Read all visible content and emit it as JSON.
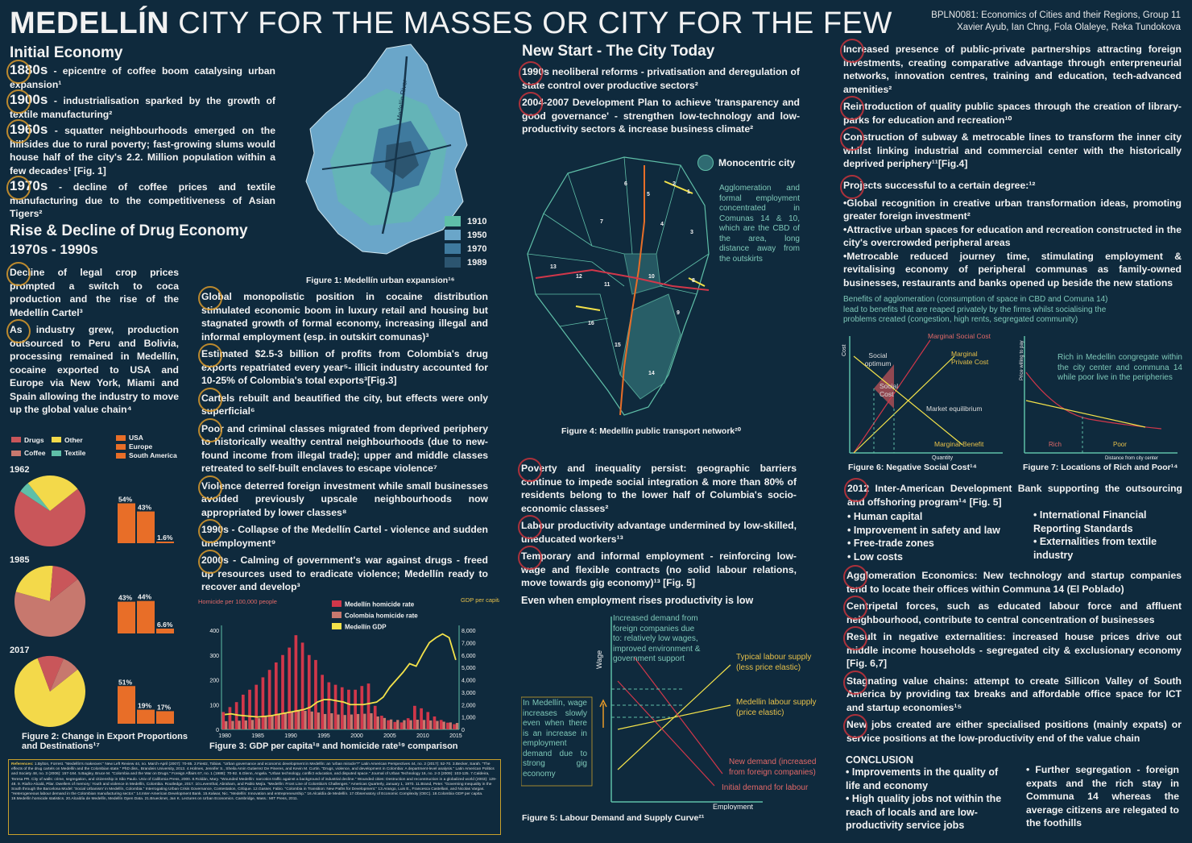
{
  "header": {
    "title_bold": "MEDELLÍN",
    "title_rest": "CITY FOR THE MASSES OR CITY FOR THE FEW",
    "course": "BPLN0081: Economics of Cities and their Regions, Group 11",
    "authors": "Xavier Ayub, Ian Chng, Fola Olaleye, Reka Tundokova"
  },
  "initial_economy": {
    "heading": "Initial Economy",
    "items": [
      {
        "year": "1880s",
        "text": " - epicentre of coffee boom catalysing urban expansion¹"
      },
      {
        "year": "1900s",
        "text": " - industrialisation sparked by the growth of textile manufacturing²"
      },
      {
        "year": "1960s",
        "text": " - squatter neighbourhoods emerged on the hillsides due to rural poverty; fast-growing slums would house half of the city's 2.2. Million population within a few decades¹ [Fig. 1]"
      },
      {
        "year": "1970s",
        "text": " - decline of coffee prices and textile manufacturing due to the competitiveness of Asian Tigers²"
      }
    ]
  },
  "fig1": {
    "caption": "Figure 1: Medellín urban expansion¹⁶",
    "river_label": "Medellín River",
    "legend": [
      {
        "label": "1910",
        "color": "#5fbfa8"
      },
      {
        "label": "1950",
        "color": "#6aa6c9"
      },
      {
        "label": "1970",
        "color": "#3f7a9e"
      },
      {
        "label": "1989",
        "color": "#2c5570"
      }
    ]
  },
  "drug": {
    "heading": "Rise & Decline of Drug Economy",
    "subheading": "1970s - 1990s",
    "left_paras": [
      "Decline of legal crop prices prompted a switch to coca production and the rise of the Medellín Cartel³",
      "As industry grew, production outsourced to Peru and Bolivia, processing remained in Medellín, cocaine exported to USA and Europe via New York, Miami and Spain allowing the industry to move up the global value chain⁴"
    ],
    "right_paras": [
      "Global monopolistic position in cocaine distribution stimulated economic boom in luxury retail and housing but stagnated growth of formal economy, increasing illegal and informal employment (esp. in outskirt comunas)³",
      "Estimated $2.5-3 billion of profits from Colombia's drug exports repatriated every year⁵- illicit industry accounted for 10-25% of Colombia's total exports³[Fig.3]",
      "Cartels rebuilt and beautified the city, but effects were only superficial⁶",
      "Poor and criminal classes migrated from deprived periphery to historically wealthy central neighbourhoods (due to new-found income from illegal trade); upper and middle classes retreated to self-built enclaves to escape violence⁷",
      "Violence deterred foreign investment while small businesses avoided previously upscale neighbourhoods now appropriated by lower classes⁸",
      "1990s - Collapse of the Medellín Cartel - violence and sudden unemployment⁹",
      "2000s - Calming of government's war against drugs - freed up resources used to eradicate violence; Medellín ready to recover and develop³"
    ]
  },
  "fig2": {
    "caption": "Figure 2: Change in Export Proportions and Destinations¹⁷",
    "legend_goods": [
      {
        "label": "Drugs",
        "color": "#c9565a"
      },
      {
        "label": "Other",
        "color": "#f3d94a"
      },
      {
        "label": "Coffee",
        "color": "#c7786e"
      },
      {
        "label": "Textile",
        "color": "#5fbfa8"
      }
    ],
    "legend_dest": [
      {
        "label": "USA",
        "color": "#e86e28"
      },
      {
        "label": "Europe",
        "color": "#e86e28"
      },
      {
        "label": "South America",
        "color": "#e86e28"
      }
    ],
    "years": [
      {
        "year": "1962",
        "pie": [
          {
            "label": "Coffee",
            "value": 70,
            "color": "#c9565a"
          },
          {
            "label": "Textile",
            "value": 5,
            "color": "#5fbfa8"
          },
          {
            "label": "Other",
            "value": 25,
            "color": "#f3d94a"
          }
        ],
        "bars": [
          {
            "label": "54%",
            "value": 54
          },
          {
            "label": "43%",
            "value": 43
          },
          {
            "label": "1.6%",
            "value": 1.6
          }
        ]
      },
      {
        "year": "1985",
        "pie": [
          {
            "label": "Coffee",
            "value": 65,
            "color": "#c7786e"
          },
          {
            "label": "Other",
            "value": 22,
            "color": "#f3d94a"
          },
          {
            "label": "Drugs",
            "value": 13,
            "color": "#c9565a"
          }
        ],
        "bars": [
          {
            "label": "43%",
            "value": 43
          },
          {
            "label": "44%",
            "value": 44
          },
          {
            "label": "6.6%",
            "value": 6.6
          }
        ]
      },
      {
        "year": "2017",
        "pie": [
          {
            "label": "Other",
            "value": 80,
            "color": "#f3d94a"
          },
          {
            "label": "Drugs",
            "value": 12,
            "color": "#c9565a"
          },
          {
            "label": "Coffee",
            "value": 8,
            "color": "#c7786e"
          }
        ],
        "bars": [
          {
            "label": "51%",
            "value": 51
          },
          {
            "label": "19%",
            "value": 19
          },
          {
            "label": "17%",
            "value": 17
          }
        ]
      }
    ]
  },
  "chart_data": {
    "type": "bar",
    "title": "Figure 3: GDP per capita¹⁸ and homicide rate¹⁹ comparison",
    "ylabel": "Homicide per 100,000 people",
    "y2label": "GDP per capita (US $)",
    "ylim": [
      0,
      400
    ],
    "y2lim": [
      0,
      8000
    ],
    "yticks": [
      "0",
      "100",
      "200",
      "300",
      "400"
    ],
    "y2ticks": [
      "0",
      "1,000",
      "2,000",
      "3,000",
      "4,000",
      "5,000",
      "6,000",
      "7,000",
      "8,000"
    ],
    "xticks": [
      "1980",
      "1985",
      "1990",
      "1995",
      "2000",
      "2005",
      "2010",
      "2015"
    ],
    "x": [
      1980,
      1981,
      1982,
      1983,
      1984,
      1985,
      1986,
      1987,
      1988,
      1989,
      1990,
      1991,
      1992,
      1993,
      1994,
      1995,
      1996,
      1997,
      1998,
      1999,
      2000,
      2001,
      2002,
      2003,
      2004,
      2005,
      2006,
      2007,
      2008,
      2009,
      2010,
      2011,
      2012,
      2013,
      2014,
      2015
    ],
    "series": [
      {
        "name": "Medellín homicide rate",
        "color": "#d1374a",
        "values": [
          70,
          90,
          110,
          140,
          160,
          180,
          210,
          240,
          270,
          300,
          330,
          380,
          350,
          300,
          280,
          220,
          190,
          180,
          170,
          160,
          160,
          175,
          185,
          95,
          55,
          37,
          30,
          28,
          45,
          95,
          85,
          70,
          52,
          38,
          27,
          21
        ]
      },
      {
        "name": "Colombia homicide rate",
        "color": "#c7786e",
        "values": [
          33,
          34,
          35,
          36,
          38,
          45,
          52,
          58,
          62,
          65,
          70,
          77,
          75,
          72,
          68,
          62,
          65,
          60,
          58,
          60,
          62,
          63,
          65,
          52,
          46,
          40,
          38,
          37,
          37,
          39,
          38,
          36,
          34,
          31,
          28,
          26
        ]
      },
      {
        "name": "Medellín GDP",
        "color": "#f3e24a",
        "values": [
          1200,
          1250,
          1150,
          1100,
          1050,
          1000,
          1050,
          1100,
          1200,
          1300,
          1400,
          1500,
          1600,
          1800,
          2200,
          2400,
          2400,
          2300,
          2200,
          2000,
          2000,
          2000,
          2100,
          2200,
          2600,
          3400,
          4000,
          4600,
          5300,
          5100,
          6100,
          7000,
          7400,
          7700,
          7400,
          5600
        ]
      }
    ]
  },
  "new_start": {
    "heading": "New Start - The City Today",
    "paras": [
      "1990s neoliberal reforms - privatisation and deregulation of state control over productive sectors²",
      "2004-2007 Development Plan to achieve 'transparency and good governance' - strengthen low-technology and low-productivity sectors & increase business climate²"
    ]
  },
  "fig4": {
    "legend_label": "Monocentric city",
    "note": "Agglomeration and formal employment concentrated in Comunas 14 & 10, which are the CBD of the area, long distance away from the outskirts",
    "caption": "Figure 4: Medellín public transport network²⁰",
    "comunas": [
      "1",
      "2",
      "3",
      "4",
      "5",
      "6",
      "7",
      "8",
      "9",
      "10",
      "11",
      "12",
      "13",
      "14",
      "15",
      "16"
    ]
  },
  "poverty": {
    "paras": [
      "Poverty and inequality persist: geographic barriers continue to impede social integration & more than 80% of residents belong to the lower half of Columbia's socio-economic classes²",
      "Labour productivity advantage undermined by low-skilled, uneducated workers¹³",
      "Temporary and informal employment - reinforcing low-wage and flexible contracts (no solid labour relations, move towards gig economy)¹³ [Fig. 5]"
    ],
    "fig5_title": "Even when employment rises productivity is low"
  },
  "fig5": {
    "xlabel": "Employment",
    "ylabel": "Wage",
    "note_top": "Increased demand from foreign companies due to: relatively low wages, improved environment & government support",
    "note_left": "In Medellín, wage increases slowly even when there is an increase in employment demand due to strong gig economy",
    "labels": [
      "Typical labour supply (less price elastic)",
      "Medellin labour supply (price elastic)",
      "New demand (increased from foreign companies)",
      "Initial demand for labour"
    ],
    "caption": "Figure 5: Labour Demand and Supply Curve²¹"
  },
  "right_col": {
    "paras": [
      "Increased presence of public-private partnerships attracting foreign investments, creating comparative advantage through enterpreneurial networks, innovation centres, training and education, tech-advanced amenities²",
      "Reintroduction of quality public spaces through the creation of library-parks for education and recreation¹⁰",
      "Construction of subway & metrocable lines to transform the inner city whilst linking industrial and commercial center with the historically deprived periphery¹¹[Fig.4]"
    ],
    "success_head": "Projects successful to a certain degree:¹²",
    "success_items": [
      "•Global recognition in creative urban transformation ideas, promoting greater foreign investment²",
      "•Attractive urban spaces for education and recreation constructed in the city's overcrowded peripheral areas",
      "•Metrocable reduced journey time, stimulating employment & revitalising economy of peripheral communas as family-owned businesses, restaurants and banks opened up beside the new stations"
    ],
    "benefits_note": "Benefits of agglomeration (consumption of space in CBD and Comuna 14) lead to benefits that are reaped privately by the firms whilst socialising the problems created (congestion, high rents, segregated community)"
  },
  "fig6": {
    "caption": "Figure 6: Negative Social Cost¹⁴",
    "ylabel": "Cost",
    "xlabel": "Quantity",
    "labels": [
      "Marginal Social Cost",
      "Marginal Private Cost",
      "Social optimum",
      "Social Cost",
      "Market equilibrium",
      "Marginal Benefit"
    ]
  },
  "fig7": {
    "caption": "Figure 7: Locations of Rich and Poor¹⁴",
    "ylabel": "Price willing to pay",
    "xlabel": "Distance from city center",
    "note": "Rich in Medellin congregate within the city center and communa 14 while poor live in the peripheries",
    "rich": "Rich",
    "poor": "Poor"
  },
  "idb": {
    "para": "2012 Inter-American Development Bank supporting the outsourcing and offshoring program¹⁴ [Fig. 5]",
    "left": [
      "• Human capital",
      "• Improvement in safety and law",
      "• Free-trade zones",
      "• Low costs"
    ],
    "right": [
      "• International Financial Reporting Standards",
      "• Externalities from textile industry"
    ]
  },
  "agglo": {
    "paras": [
      "Agglomeration Economics: New technology and startup companies tend to locate their offices within Communa 14 (El Poblado)",
      "Centripetal forces, such as educated labour force and affluent neighbourhood, contribute to central concentration of businesses",
      "Result in negative externalities: increased house prices drive out middle income households - segregated city & exclusionary economy [Fig. 6,7]",
      "Stagnating value chains: attempt to create Sillicon Valley of South America by providing tax breaks and affordable office space for ICT and startup economies¹⁵",
      "New jobs created are either specialised positions (mainly expats) or service positions at the low-productivity end of the value chain"
    ]
  },
  "conclusion": {
    "heading": "CONCLUSION",
    "left": [
      "• Improvements in the quality of life and economy",
      "• High quality jobs not within the reach of locals and are low-productivity service jobs"
    ],
    "right": "• Further segregation - foreign expats and the rich stay in Communa 14 whereas the average citizens are relegated to the foothills"
  },
  "references": {
    "heading": "References:",
    "text": "1.Bylton, Forrest. \"Medellín's makeover.\" New Left Review 44, no. March-April (2007): 70-85. 2.Fiestz, Tobias. \"Urban governance and economic development in Medellín: an 'urban miracle'?\" Latin American Perspectives 44, no. 2 (2017): 52-70. 3.Becker, Sarah. \"The effects of the drug cartels on Medellín and the Colombian state.\" PhD diss., Brandeis University, 2013. 4.Holmes, Jennifer S., Sheila Amin Gutierrez De Pineres, and Kevin M. Curtin. \"Drugs, violence, and development in Colombia: A department-level analysis.\" Latin American Politics and Society 48, no. 3 (2006): 157-184. 5.Bagley, Bruce M. \"Colombia and the War on Drugs.\" Foreign Affairs 67, no. 1 (1988): 70-92. 6.Glenn, Angela. \"Urban technology, conflict education, and disputed space.\" Journal of Urban Technology 16, no. 2-3 (2009): 103-125. 7.Caldeira, Teresa PR. City of walls: crime, segregation, and citizenship in São Paulo. Univ of California Press, 2000. 8.Roldán, Mary. \"Wounded Medellín: narcotics traffic against a background of industrial decline.\" Wounded cities: Destruction and reconstruction in a globalized world (2003): 129-48. 9. Riaño-Alcalá, Pilar. Dwellers of memory: Youth and violence in Medellín, Colombia. Routledge, 2017. 10.Leventhal, Abraham, and Pablo Mejía. \"Medellín: Front Line of Colombia's Challenges.\" Americas Quarterly, January 1, 1970. 11.Brand, Peter. \"Governing Inequality in the South through the Barcelona Model: 'Social Urbanism' in Medellín, Colombia.\" Interrogating Urban Crisis Governance, Contestation, Critique. 12.Gasser, Fabio. \"Colombia in Transition: New Paths for Development.\" 13.Arango, Luis E., Francesca Castellani, and Nicolas Vargas. \"Heterogeneous labour demand in the Colombian manufacturing sector.\" 14.Inter-American Development Bank. 15.Kalwar, Nic. \"Medellín: Innovation and entrepreneurship.\" 16.Alcaldía de Medellín. 17.Observatory of Economic Complexity (OEC). 18.Colombia GDP per capita. 19.Medellín homicide statistics. 20.Alcaldía de Medellín, Medellín Open Data. 21.Bruecknet, Jan K. Lectures on Urban Economics. Cambridge, Mass.: MIT Press, 2011."
  }
}
